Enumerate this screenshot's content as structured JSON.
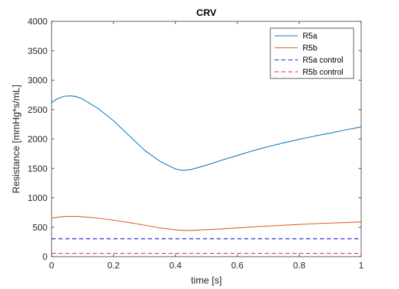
{
  "chart_data": {
    "type": "line",
    "title": "CRV",
    "xlabel": "time [s]",
    "ylabel": "Resistance [mmHg*s/mL]",
    "xlim": [
      0,
      1
    ],
    "ylim": [
      0,
      4000
    ],
    "xticks": [
      0,
      0.2,
      0.4,
      0.6,
      0.8,
      1
    ],
    "xtick_labels": [
      "0",
      "0.2",
      "0.4",
      "0.6",
      "0.8",
      "1"
    ],
    "yticks": [
      0,
      500,
      1000,
      1500,
      2000,
      2500,
      3000,
      3500,
      4000
    ],
    "ytick_labels": [
      "0",
      "500",
      "1000",
      "1500",
      "2000",
      "2500",
      "3000",
      "3500",
      "4000"
    ],
    "grid": false,
    "legend_position": "top-right",
    "series": [
      {
        "name": "R5a",
        "color": "#0072BD",
        "dash": "solid",
        "x": [
          0,
          0.02,
          0.04,
          0.06,
          0.08,
          0.1,
          0.15,
          0.2,
          0.25,
          0.3,
          0.35,
          0.4,
          0.42,
          0.43,
          0.45,
          0.5,
          0.55,
          0.6,
          0.65,
          0.7,
          0.75,
          0.8,
          0.85,
          0.9,
          0.95,
          1.0
        ],
        "y": [
          2620,
          2690,
          2725,
          2735,
          2720,
          2680,
          2520,
          2310,
          2060,
          1810,
          1620,
          1490,
          1470,
          1470,
          1480,
          1555,
          1640,
          1720,
          1800,
          1870,
          1935,
          1995,
          2050,
          2100,
          2155,
          2205
        ]
      },
      {
        "name": "R5b",
        "color": "#D95319",
        "dash": "solid",
        "x": [
          0,
          0.02,
          0.04,
          0.06,
          0.08,
          0.1,
          0.15,
          0.2,
          0.25,
          0.3,
          0.35,
          0.4,
          0.43,
          0.45,
          0.5,
          0.55,
          0.6,
          0.65,
          0.7,
          0.75,
          0.8,
          0.85,
          0.9,
          0.95,
          1.0
        ],
        "y": [
          655,
          672,
          682,
          685,
          683,
          678,
          655,
          620,
          580,
          535,
          490,
          455,
          445,
          445,
          458,
          472,
          490,
          505,
          520,
          535,
          548,
          560,
          570,
          580,
          590
        ]
      },
      {
        "name": "R5a control",
        "color": "#0000CC",
        "dash": "dashed",
        "x": [
          0,
          1
        ],
        "y": [
          305,
          305
        ]
      },
      {
        "name": "R5b control",
        "color": "#E62020",
        "dash": "dashed",
        "x": [
          0,
          1
        ],
        "y": [
          55,
          55
        ]
      }
    ]
  }
}
